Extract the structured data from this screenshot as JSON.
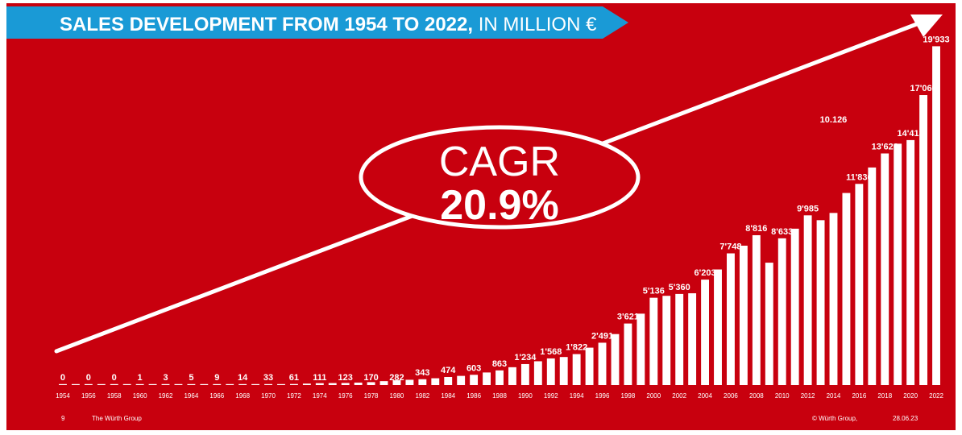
{
  "colors": {
    "background": "#c8000e",
    "banner": "#1a9ad6",
    "bars": "#ffffff",
    "text": "#ffffff"
  },
  "banner": {
    "title_bold": "SALES DEVELOPMENT FROM 1954 TO 2022,",
    "title_light": " IN MILLION €"
  },
  "cagr": {
    "label": "CAGR",
    "value": "20.9%"
  },
  "footer": {
    "page_number": "9",
    "company": "The Würth Group",
    "copyright": "© Würth Group,",
    "date": "28.06.23"
  },
  "chart_data": {
    "type": "bar",
    "title": "SALES DEVELOPMENT FROM 1954 TO 2022, IN MILLION €",
    "tick_labels": [
      "1954",
      "1956",
      "1958",
      "1960",
      "1962",
      "1964",
      "1966",
      "1968",
      "1970",
      "1972",
      "1974",
      "1976",
      "1978",
      "1980",
      "1982",
      "1984",
      "1986",
      "1988",
      "1990",
      "1992",
      "1994",
      "1996",
      "1998",
      "2000",
      "2002",
      "2004",
      "2006",
      "2008",
      "2010",
      "2012",
      "2014",
      "2016",
      "2018",
      "2020",
      "2022"
    ],
    "x": [
      1954,
      1955,
      1956,
      1957,
      1958,
      1959,
      1960,
      1961,
      1962,
      1963,
      1964,
      1965,
      1966,
      1967,
      1968,
      1969,
      1970,
      1971,
      1972,
      1973,
      1974,
      1975,
      1976,
      1977,
      1978,
      1979,
      1980,
      1981,
      1982,
      1983,
      1984,
      1985,
      1986,
      1987,
      1988,
      1989,
      1990,
      1991,
      1992,
      1993,
      1994,
      1995,
      1996,
      1997,
      1998,
      1999,
      2000,
      2001,
      2002,
      2003,
      2004,
      2005,
      2006,
      2007,
      2008,
      2009,
      2010,
      2011,
      2012,
      2013,
      2014,
      2015,
      2016,
      2017,
      2018,
      2019,
      2020,
      2021,
      2022
    ],
    "values": [
      0,
      0,
      0,
      0,
      0,
      0,
      1,
      2,
      3,
      4,
      5,
      7,
      9,
      11,
      14,
      22,
      33,
      45,
      61,
      85,
      111,
      117,
      123,
      145,
      170,
      230,
      282,
      310,
      343,
      400,
      474,
      540,
      603,
      740,
      863,
      1050,
      1234,
      1400,
      1568,
      1650,
      1822,
      2200,
      2491,
      3000,
      3621,
      4200,
      5136,
      5250,
      5360,
      5400,
      6203,
      6800,
      7748,
      8200,
      8816,
      7200,
      8633,
      9200,
      9985,
      9700,
      10126,
      11300,
      11836,
      12800,
      13626,
      14200,
      14413,
      17060,
      19933
    ],
    "data_labels": [
      {
        "x": 1954,
        "text": "0"
      },
      {
        "x": 1956,
        "text": "0"
      },
      {
        "x": 1958,
        "text": "0"
      },
      {
        "x": 1960,
        "text": "1"
      },
      {
        "x": 1962,
        "text": "3"
      },
      {
        "x": 1964,
        "text": "5"
      },
      {
        "x": 1966,
        "text": "9"
      },
      {
        "x": 1968,
        "text": "14"
      },
      {
        "x": 1970,
        "text": "33"
      },
      {
        "x": 1972,
        "text": "61"
      },
      {
        "x": 1974,
        "text": "111"
      },
      {
        "x": 1976,
        "text": "123"
      },
      {
        "x": 1978,
        "text": "170"
      },
      {
        "x": 1980,
        "text": "282"
      },
      {
        "x": 1982,
        "text": "343"
      },
      {
        "x": 1984,
        "text": "474"
      },
      {
        "x": 1986,
        "text": "603"
      },
      {
        "x": 1988,
        "text": "863"
      },
      {
        "x": 1990,
        "text": "1'234"
      },
      {
        "x": 1992,
        "text": "1'568"
      },
      {
        "x": 1994,
        "text": "1'822"
      },
      {
        "x": 1996,
        "text": "2'491"
      },
      {
        "x": 1998,
        "text": "3'621"
      },
      {
        "x": 2000,
        "text": "5'136"
      },
      {
        "x": 2002,
        "text": "5'360"
      },
      {
        "x": 2004,
        "text": "6'203"
      },
      {
        "x": 2006,
        "text": "7'748"
      },
      {
        "x": 2008,
        "text": "8'816"
      },
      {
        "x": 2010,
        "text": "8'633"
      },
      {
        "x": 2012,
        "text": "9'985"
      },
      {
        "x": 2014,
        "text": "10.126"
      },
      {
        "x": 2016,
        "text": "11'836"
      },
      {
        "x": 2018,
        "text": "13'626"
      },
      {
        "x": 2020,
        "text": "14'413"
      },
      {
        "x": 2021,
        "text": "17'060"
      },
      {
        "x": 2022,
        "text": "19'933"
      }
    ],
    "ylim": [
      0,
      20000
    ],
    "grid": false,
    "legend": "none"
  }
}
